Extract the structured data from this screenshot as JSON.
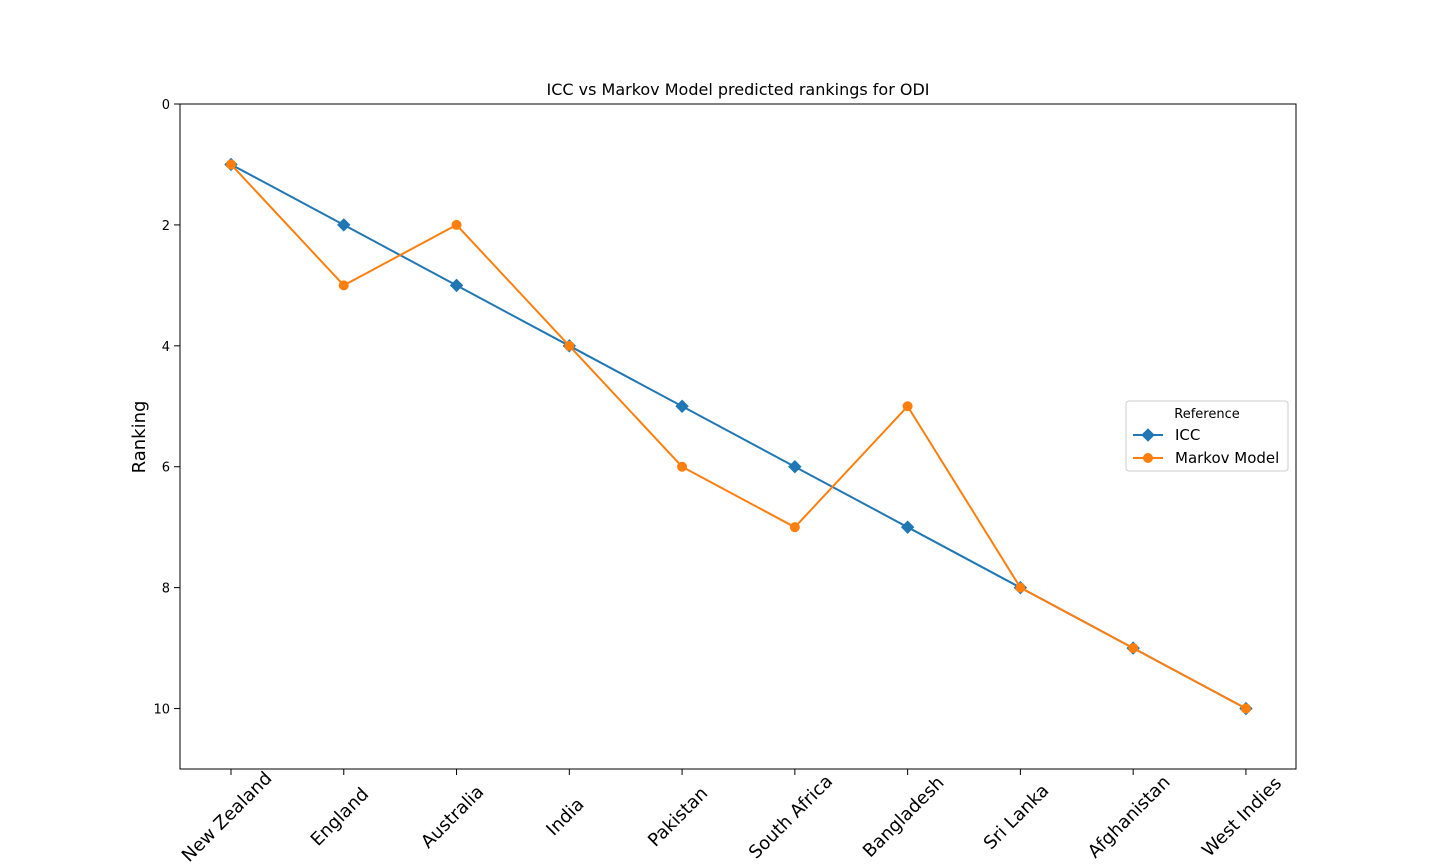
{
  "chart_data": {
    "type": "line",
    "title": "ICC vs Markov Model predicted rankings for ODI",
    "xlabel": "",
    "ylabel": "Ranking",
    "categories": [
      "New Zealand",
      "England",
      "Australia",
      "India",
      "Pakistan",
      "South Africa",
      "Bangladesh",
      "Sri Lanka",
      "Afghanistan",
      "West Indies"
    ],
    "y_ticks": [
      0,
      2,
      4,
      6,
      8,
      10
    ],
    "ylim": [
      11,
      0
    ],
    "y_inverted": true,
    "grid": false,
    "legend": {
      "title": "Reference",
      "placement": "center-right"
    },
    "series": [
      {
        "name": "ICC",
        "color": "#1f77b4",
        "marker": "diamond",
        "values": [
          1,
          2,
          3,
          4,
          5,
          6,
          7,
          8,
          9,
          10
        ]
      },
      {
        "name": "Markov Model",
        "color": "#ff7f0e",
        "marker": "circle",
        "values": [
          1,
          3,
          2,
          4,
          6,
          7,
          5,
          8,
          9,
          10
        ]
      }
    ]
  }
}
